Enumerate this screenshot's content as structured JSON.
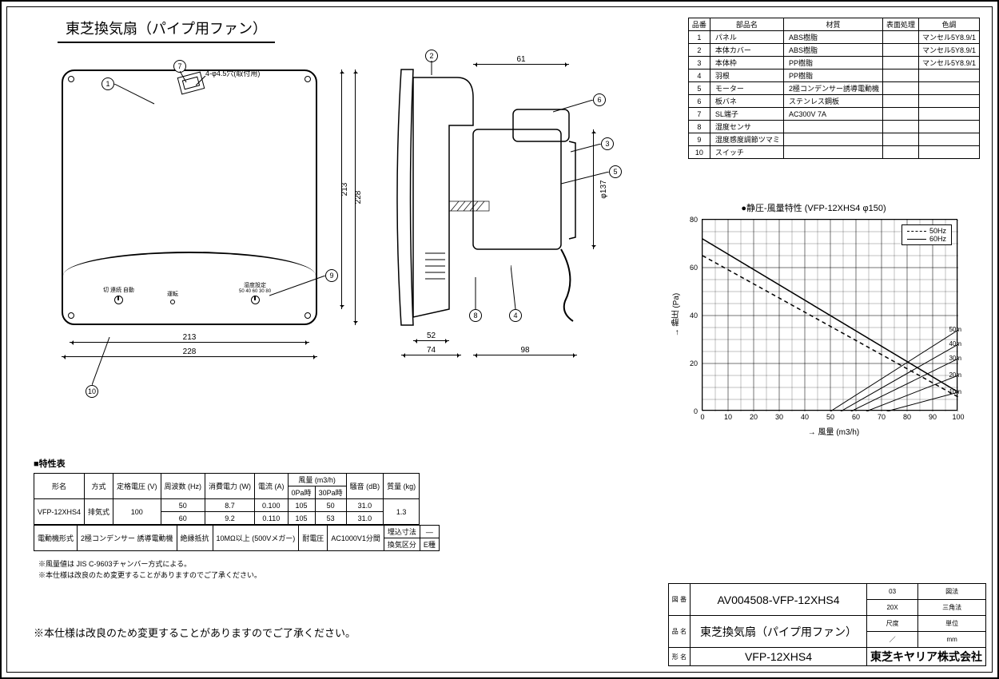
{
  "title": "東芝換気扇（パイプ用ファン）",
  "front": {
    "callouts": {
      "1": "1",
      "7": "7",
      "10": "10",
      "9": "9"
    },
    "note_holes": "4-φ4.5穴(取付用)",
    "sw_label": "切 連続 自動",
    "led_label": "運転",
    "hum_label": "湿度設定",
    "hum_scale": "50\n40 60\n30 80",
    "dim_w_inner": "213",
    "dim_w_outer": "228",
    "dim_h_inner": "213",
    "dim_h_outer": "228"
  },
  "side": {
    "callouts": {
      "2": "2",
      "6": "6",
      "3": "3",
      "5": "5",
      "8": "8",
      "4": "4"
    },
    "dim_top": "61",
    "dim_d1": "52",
    "dim_d2": "74",
    "dim_d3": "98",
    "dim_dia": "φ137"
  },
  "parts": {
    "head": [
      "品番",
      "部品名",
      "材質",
      "表面処理",
      "色調"
    ],
    "rows": [
      [
        "1",
        "パネル",
        "ABS樹脂",
        "",
        "マンセル5Y8.9/1"
      ],
      [
        "2",
        "本体カバー",
        "ABS樹脂",
        "",
        "マンセル5Y8.9/1"
      ],
      [
        "3",
        "本体枠",
        "PP樹脂",
        "",
        "マンセル5Y8.9/1"
      ],
      [
        "4",
        "羽根",
        "PP樹脂",
        "",
        ""
      ],
      [
        "5",
        "モーター",
        "2極コンデンサー誘導電動機",
        "",
        ""
      ],
      [
        "6",
        "板バネ",
        "ステンレス鋼板",
        "",
        ""
      ],
      [
        "7",
        "SL端子",
        "AC300V 7A",
        "",
        ""
      ],
      [
        "8",
        "湿度センサ",
        "",
        "",
        ""
      ],
      [
        "9",
        "湿度感度調節ツマミ",
        "",
        "",
        ""
      ],
      [
        "10",
        "スイッチ",
        "",
        "",
        ""
      ]
    ]
  },
  "spec_heading": "■特性表",
  "spec1": {
    "head_top": [
      "形名",
      "方式",
      "定格電圧\n(V)",
      "周波数\n(Hz)",
      "消費電力\n(W)",
      "電流\n(A)",
      "風量 (m3/h)",
      "騒音\n(dB)",
      "質量\n(kg)"
    ],
    "head_sub": [
      "0Pa時",
      "30Pa時"
    ],
    "model": "VFP-12XHS4",
    "method": "排気式",
    "volt": "100",
    "r50": [
      "50",
      "8.7",
      "0.100",
      "105",
      "50",
      "31.0"
    ],
    "r60": [
      "60",
      "9.2",
      "0.110",
      "105",
      "53",
      "31.0"
    ],
    "mass": "1.3"
  },
  "spec2": {
    "c1": "電動機形式",
    "c2": "2極コンデンサー\n誘導電動機",
    "c3": "絶縁抵抗",
    "c4": "10MΩ以上\n(500Vメガー)",
    "c5": "耐電圧",
    "c6": "AC1000V1分間",
    "c7a": "埋込寸法",
    "c7b": "—",
    "c8a": "換気区分",
    "c8b": "E種"
  },
  "notes": [
    "※風量値は JIS C-9603チャンバー方式による。",
    "※本仕様は改良のため変更することがありますのでご了承ください。"
  ],
  "disclaimer": "※本仕様は改良のため変更することがありますのでご了承ください。",
  "chart": {
    "title": "●静圧-風量特性 (VFP-12XHS4 φ150)",
    "ylabel": "→ 静圧 (Pa)",
    "xlabel": "→ 風量 (m3/h)",
    "xlim": [
      0,
      100
    ],
    "ylim": [
      0,
      80
    ],
    "xticks": [
      0,
      10,
      20,
      30,
      40,
      50,
      60,
      70,
      80,
      90,
      100
    ],
    "yticks": [
      0,
      20,
      40,
      60,
      80
    ],
    "legend": [
      {
        "label": "50Hz",
        "dash": true
      },
      {
        "label": "60Hz",
        "dash": false
      }
    ],
    "series": {
      "50Hz": [
        [
          0,
          65
        ],
        [
          100,
          6
        ]
      ],
      "60Hz": [
        [
          0,
          72
        ],
        [
          100,
          8
        ]
      ]
    },
    "duct_curves": {
      "50m": [
        [
          50,
          0
        ],
        [
          100,
          34
        ]
      ],
      "40m": [
        [
          54,
          0
        ],
        [
          100,
          28
        ]
      ],
      "30m": [
        [
          58,
          0
        ],
        [
          100,
          22
        ]
      ],
      "20m": [
        [
          64,
          0
        ],
        [
          100,
          15
        ]
      ],
      "10m": [
        [
          72,
          0
        ],
        [
          100,
          8
        ]
      ]
    },
    "colors": {
      "line": "#000000",
      "grid": "#000000",
      "bg": "#ffffff"
    }
  },
  "titleblock": {
    "r1": {
      "l": "図\n番",
      "v": "AV004508-VFP-12XHS4",
      "rev": "03",
      "rl": "図法"
    },
    "r1b": {
      "a": "20X",
      "b": "三角法"
    },
    "r2": {
      "l": "品\n名",
      "v": "東芝換気扇（パイプ用ファン）",
      "a": "尺度",
      "b": "単位"
    },
    "r2b": {
      "a": "／",
      "b": "mm"
    },
    "r3": {
      "l": "形\n名",
      "v": "VFP-12XHS4",
      "co": "東芝キヤリア株式会社"
    }
  }
}
